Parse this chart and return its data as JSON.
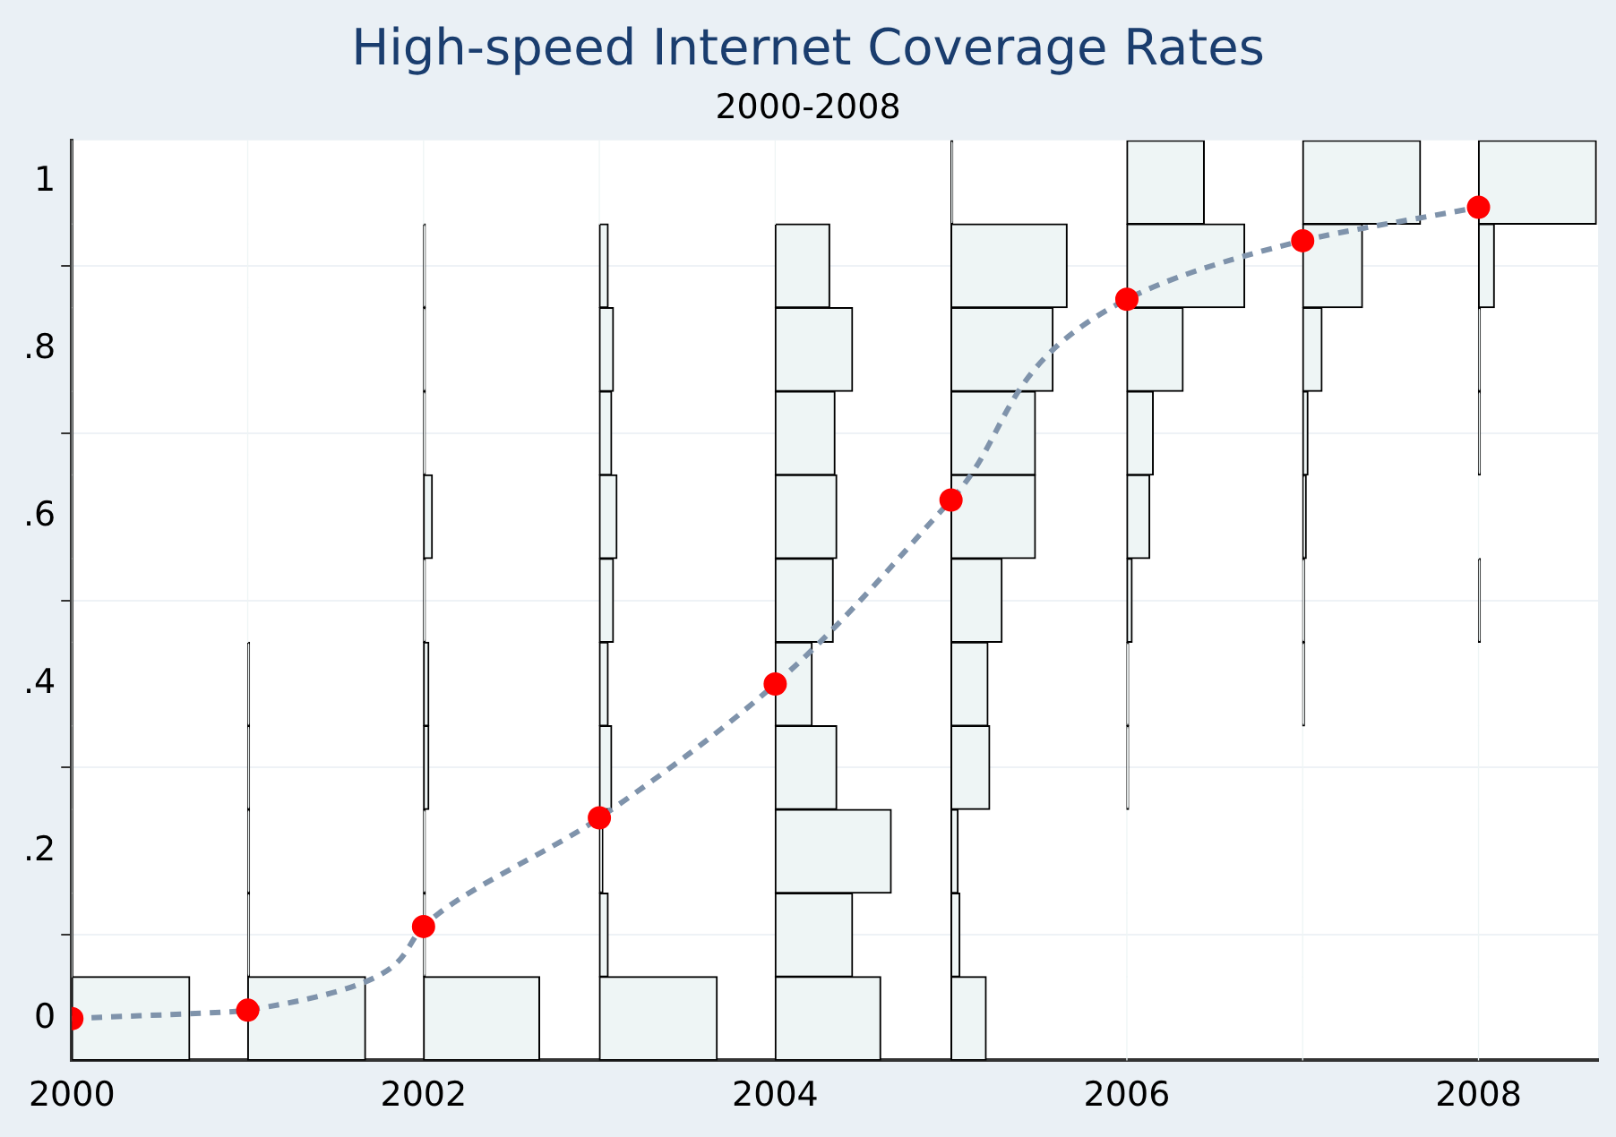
{
  "chart_data": {
    "type": "line",
    "title": "High-speed Internet Coverage Rates",
    "subtitle": "2000-2008",
    "xlim": [
      2000,
      2008.68
    ],
    "xticks": [
      2000,
      2002,
      2004,
      2006,
      2008
    ],
    "ylim": [
      -0.05,
      1.05
    ],
    "yticks": [
      0,
      {
        "value": 0.2,
        "label": ".2"
      },
      {
        "value": 0.4,
        "label": ".4"
      },
      {
        "value": 0.6,
        "label": ".6"
      },
      {
        "value": 0.8,
        "label": ".8"
      },
      1
    ],
    "grid": "y",
    "legend": false,
    "orientation": "horizontal",
    "series": [
      {
        "type": "histogram",
        "color": "#eef5f5",
        "bins": [
          -0.05,
          0.05,
          0.15,
          0.25,
          0.35,
          0.45,
          0.55,
          0.65,
          0.75,
          0.85,
          0.95,
          1.05
        ],
        "base": [
          2000,
          2000,
          2000,
          2000,
          2000,
          2000,
          2000,
          2000,
          2000,
          2000,
          2000
        ],
        "values": [
          0.67,
          0,
          0,
          0,
          0,
          0,
          0,
          0,
          0,
          0,
          0
        ]
      },
      {
        "type": "histogram",
        "color": "#eef5f5",
        "bins": [
          -0.05,
          0.05,
          0.15,
          0.25,
          0.35,
          0.45,
          0.55,
          0.65,
          0.75,
          0.85,
          0.95,
          1.05
        ],
        "base": [
          2001,
          2001,
          2001,
          2001,
          2001,
          2001,
          2001,
          2001,
          2001,
          2001,
          2001
        ],
        "values": [
          0.67,
          0.01,
          0.01,
          0.01,
          0.01,
          0,
          0,
          0,
          0,
          0,
          0
        ]
      },
      {
        "type": "histogram",
        "color": "#eef5f5",
        "bins": [
          -0.05,
          0.05,
          0.15,
          0.25,
          0.35,
          0.45,
          0.55,
          0.65,
          0.75,
          0.85,
          0.95,
          1.05
        ],
        "base": [
          2002,
          2002,
          2002,
          2002,
          2002,
          2002,
          2002,
          2002,
          2002,
          2002,
          2002
        ],
        "values": [
          0.66,
          0.01,
          0.01,
          0.03,
          0.03,
          0.01,
          0.05,
          0.01,
          0.01,
          0.01,
          0
        ]
      },
      {
        "type": "histogram",
        "color": "#eef5f5",
        "bins": [
          -0.05,
          0.05,
          0.15,
          0.25,
          0.35,
          0.45,
          0.55,
          0.65,
          0.75,
          0.85,
          0.95,
          1.05
        ],
        "base": [
          2003,
          2003,
          2003,
          2003,
          2003,
          2003,
          2003,
          2003,
          2003,
          2003,
          2003
        ],
        "values": [
          0.67,
          0.05,
          0.02,
          0.07,
          0.05,
          0.08,
          0.1,
          0.07,
          0.08,
          0.05,
          0
        ]
      },
      {
        "type": "histogram",
        "color": "#eef5f5",
        "bins": [
          -0.05,
          0.05,
          0.15,
          0.25,
          0.35,
          0.45,
          0.55,
          0.65,
          0.75,
          0.85,
          0.95,
          1.05
        ],
        "base": [
          2004,
          2004,
          2004,
          2004,
          2004,
          2004,
          2004,
          2004,
          2004,
          2004,
          2004
        ],
        "values": [
          0.6,
          0.44,
          0.66,
          0.35,
          0.21,
          0.33,
          0.35,
          0.34,
          0.44,
          0.31,
          0
        ]
      },
      {
        "type": "histogram",
        "color": "#eef5f5",
        "bins": [
          -0.05,
          0.05,
          0.15,
          0.25,
          0.35,
          0.45,
          0.55,
          0.65,
          0.75,
          0.85,
          0.95,
          1.05
        ],
        "base": [
          2005,
          2005,
          2005,
          2005,
          2005,
          2005,
          2005,
          2005,
          2005,
          2005,
          2005
        ],
        "values": [
          0.2,
          0.05,
          0.04,
          0.22,
          0.21,
          0.29,
          0.48,
          0.48,
          0.58,
          0.66,
          0.01
        ]
      },
      {
        "type": "histogram",
        "color": "#eef5f5",
        "bins": [
          -0.05,
          0.05,
          0.15,
          0.25,
          0.35,
          0.45,
          0.55,
          0.65,
          0.75,
          0.85,
          0.95,
          1.05
        ],
        "base": [
          2006,
          2006,
          2006,
          2006,
          2006,
          2006,
          2006,
          2006,
          2006,
          2006,
          2006
        ],
        "values": [
          0,
          0,
          0,
          0.01,
          0.01,
          0.03,
          0.13,
          0.15,
          0.32,
          0.67,
          0.44
        ]
      },
      {
        "type": "histogram",
        "color": "#eef5f5",
        "bins": [
          -0.05,
          0.05,
          0.15,
          0.25,
          0.35,
          0.45,
          0.55,
          0.65,
          0.75,
          0.85,
          0.95,
          1.05
        ],
        "base": [
          2007,
          2007,
          2007,
          2007,
          2007,
          2007,
          2007,
          2007,
          2007,
          2007,
          2007
        ],
        "values": [
          0,
          0,
          0,
          0,
          0.01,
          0.01,
          0.02,
          0.03,
          0.11,
          0.34,
          0.67
        ]
      },
      {
        "type": "histogram",
        "color": "#eef5f5",
        "bins": [
          -0.05,
          0.05,
          0.15,
          0.25,
          0.35,
          0.45,
          0.55,
          0.65,
          0.75,
          0.85,
          0.95,
          1.05
        ],
        "base": [
          2008,
          2008,
          2008,
          2008,
          2008,
          2008,
          2008,
          2008,
          2008,
          2008,
          2008
        ],
        "values": [
          0,
          0,
          0,
          0,
          0,
          0.01,
          0,
          0.01,
          0.01,
          0.09,
          0.67
        ]
      },
      {
        "color": "#7f93ab",
        "line_style": "dashed",
        "marker": "none",
        "x": [
          0,
          0.01,
          0.11,
          0.24,
          0.4,
          0.62,
          0.86,
          0.93,
          0.97
        ],
        "values": [
          2000,
          2001,
          2002,
          2003,
          2004,
          2005,
          2006,
          2007,
          2008
        ]
      },
      {
        "type": "scatter",
        "color": "#ff0000",
        "marker": "circle",
        "x": [
          0,
          0.01,
          0.11,
          0.24,
          0.4,
          0.62,
          0.86,
          0.93,
          0.97
        ],
        "values": [
          2000,
          2001,
          2002,
          2003,
          2004,
          2005,
          2006,
          2007,
          2008
        ]
      }
    ]
  }
}
